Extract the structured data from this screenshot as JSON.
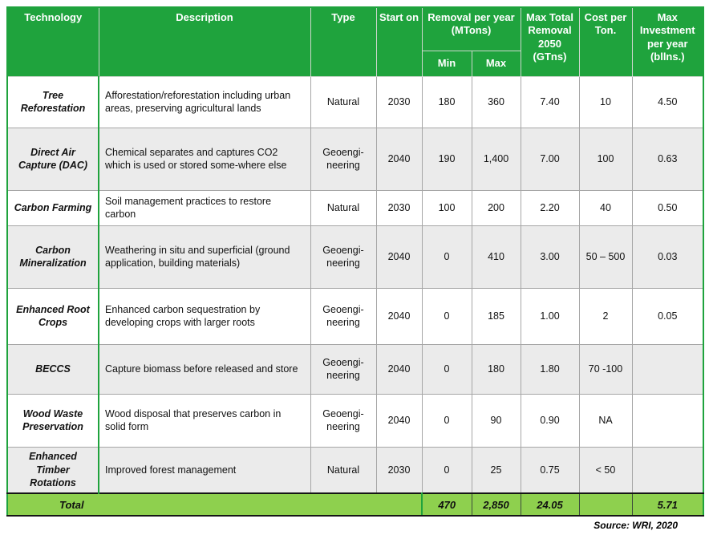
{
  "chart_data": {
    "type": "table",
    "headers": {
      "technology": "Technology",
      "description": "Description",
      "type": "Type",
      "start_on": "Start on",
      "removal_per_year": "Removal per year (MTons)",
      "min": "Min",
      "max": "Max",
      "max_total_removal": "Max Total Removal 2050 (GTns)",
      "cost_per_ton": "Cost per Ton.",
      "max_investment": "Max Investment per year (bllns.)"
    },
    "rows": [
      {
        "technology": "Tree Reforestation",
        "description": "Afforestation/reforestation including urban areas, preserving agricultural lands",
        "type": "Natural",
        "start_on": "2030",
        "min": "180",
        "max": "360",
        "max_total_removal": "7.40",
        "cost_per_ton": "10",
        "max_investment": "4.50"
      },
      {
        "technology": "Direct Air Capture (DAC)",
        "description": "Chemical separates and captures CO2 which is used or stored some-where else",
        "type": "Geoengi-neering",
        "start_on": "2040",
        "min": "190",
        "max": "1,400",
        "max_total_removal": "7.00",
        "cost_per_ton": "100",
        "max_investment": "0.63"
      },
      {
        "technology": "Carbon Farming",
        "description": "Soil management practices to restore carbon",
        "type": "Natural",
        "start_on": "2030",
        "min": "100",
        "max": "200",
        "max_total_removal": "2.20",
        "cost_per_ton": "40",
        "max_investment": "0.50"
      },
      {
        "technology": "Carbon Mineralization",
        "description": "Weathering in situ and superficial (ground application, building materials)",
        "type": "Geoengi-neering",
        "start_on": "2040",
        "min": "0",
        "max": "410",
        "max_total_removal": "3.00",
        "cost_per_ton": "50 – 500",
        "max_investment": "0.03"
      },
      {
        "technology": "Enhanced Root Crops",
        "description": "Enhanced carbon sequestration by developing crops with larger roots",
        "type": "Geoengi-neering",
        "start_on": "2040",
        "min": "0",
        "max": "185",
        "max_total_removal": "1.00",
        "cost_per_ton": "2",
        "max_investment": "0.05"
      },
      {
        "technology": "BECCS",
        "description": "Capture biomass before released and store",
        "type": "Geoengi-neering",
        "start_on": "2040",
        "min": "0",
        "max": "180",
        "max_total_removal": "1.80",
        "cost_per_ton": "70 -100",
        "max_investment": ""
      },
      {
        "technology": "Wood Waste Preservation",
        "description": "Wood disposal that preserves carbon in solid form",
        "type": "Geoengi-neering",
        "start_on": "2040",
        "min": "0",
        "max": "90",
        "max_total_removal": "0.90",
        "cost_per_ton": "NA",
        "max_investment": ""
      },
      {
        "technology": "Enhanced Timber Rotations",
        "description": "Improved forest management",
        "type": "Natural",
        "start_on": "2030",
        "min": "0",
        "max": "25",
        "max_total_removal": "0.75",
        "cost_per_ton": "< 50",
        "max_investment": ""
      }
    ],
    "total_row": {
      "label": "Total",
      "min": "470",
      "max": "2,850",
      "max_total_removal": "24.05",
      "cost_per_ton": "",
      "max_investment": "5.71"
    },
    "source": "Source: WRI, 2020"
  },
  "colors": {
    "header_green": "#1fa33d",
    "total_row_green": "#8ed04e",
    "alt_row_gray": "#ebebeb",
    "grid_gray": "#a6a6a6",
    "dark_border": "#151515"
  }
}
